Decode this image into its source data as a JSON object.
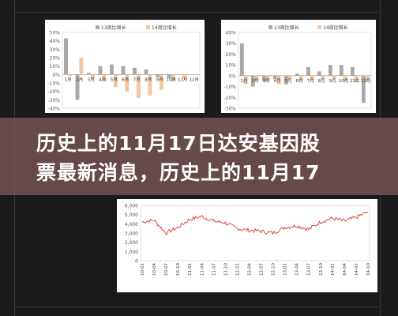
{
  "headline": {
    "line1": "历史上的11月17日达安基因股",
    "line2": "票最新消息，历史上的11月17"
  },
  "colors": {
    "series_a": "#a8a8a8",
    "series_b": "#f2c6a0",
    "stock_line": "#d84a3c",
    "banner": "#765654"
  },
  "chart_data": [
    {
      "type": "bar",
      "categories": [
        "1月",
        "2月",
        "3月",
        "4月",
        "5月",
        "6月",
        "7月",
        "8月",
        "9月",
        "10月",
        "11月",
        "12月"
      ],
      "series": [
        {
          "name": "13周比增长",
          "values": [
            43,
            -30,
            2,
            10,
            12,
            10,
            8,
            6,
            -3,
            -4,
            0,
            0
          ]
        },
        {
          "name": "14周比增长",
          "values": [
            -2,
            20,
            -5,
            -8,
            -15,
            -20,
            -28,
            -25,
            -18,
            -8,
            -5,
            0
          ]
        }
      ],
      "yticks": [
        "50%",
        "40%",
        "30%",
        "20%",
        "10%",
        "0%",
        "-10%",
        "-20%",
        "-30%",
        "-40%"
      ],
      "ylim": [
        -40,
        50
      ],
      "legend": "top-right"
    },
    {
      "type": "bar",
      "categories": [
        "1月",
        "2月",
        "3月",
        "4月",
        "5月",
        "6月",
        "7月",
        "8月",
        "9月",
        "10月",
        "11月",
        "12月"
      ],
      "series": [
        {
          "name": "13周比增长",
          "values": [
            30,
            -10,
            -5,
            -3,
            -8,
            2,
            8,
            4,
            10,
            10,
            8,
            -25
          ]
        },
        {
          "name": "14周比增长",
          "values": [
            -8,
            -5,
            -5,
            -8,
            -3,
            -5,
            -4,
            -3,
            -3,
            -5,
            -6,
            -5
          ]
        }
      ],
      "yticks": [
        "40%",
        "30%",
        "20%",
        "10%",
        "0%",
        "-10%",
        "-20%",
        "-30%"
      ],
      "ylim": [
        -30,
        40
      ],
      "legend": "top-right"
    },
    {
      "type": "line",
      "x": [
        "10-01",
        "10-04",
        "10-07",
        "10-10",
        "11-01",
        "11-04",
        "11-07",
        "11-10",
        "12-01",
        "12-04",
        "12-07",
        "12-10",
        "13-01",
        "13-04",
        "13-07",
        "13-10",
        "14-01",
        "14-04",
        "14-07",
        "14-10"
      ],
      "yticks": [
        "6,000",
        "5,000",
        "4,000",
        "3,000",
        "2,000",
        "1,000",
        "0"
      ],
      "ylim": [
        0,
        6000
      ],
      "series": [
        {
          "values": [
            4200,
            4400,
            3000,
            3600,
            4500,
            4800,
            4300,
            4100,
            3500,
            3300,
            3200,
            3000,
            3600,
            3800,
            3400,
            4200,
            4600,
            4300,
            4700,
            5300
          ]
        }
      ]
    }
  ]
}
